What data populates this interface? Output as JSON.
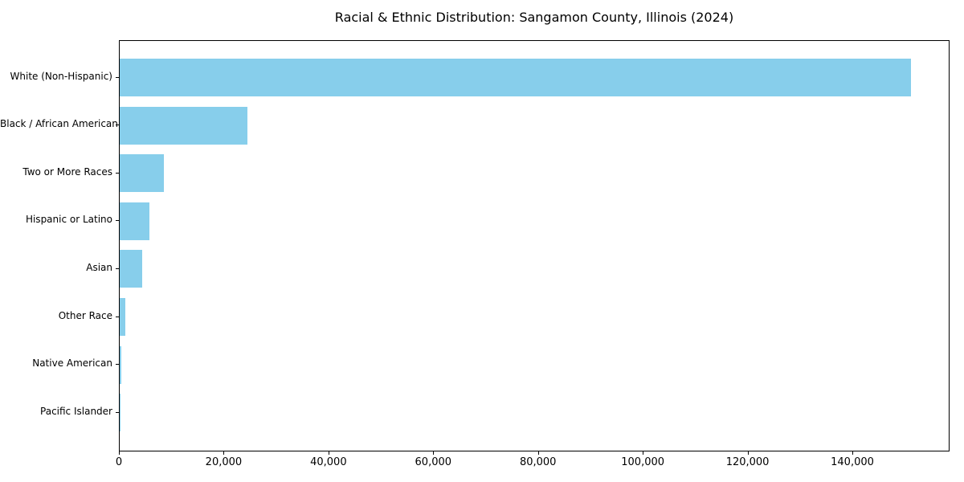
{
  "title": "Racial & Ethnic Distribution: Sangamon County, Illinois (2024)",
  "colors": {
    "bar": "#87CEEB",
    "axis": "#000000",
    "background": "#FFFFFF",
    "text": "#000000"
  },
  "chart_data": {
    "type": "bar",
    "orientation": "horizontal",
    "title": "Racial & Ethnic Distribution: Sangamon County, Illinois (2024)",
    "categories": [
      "White (Non-Hispanic)",
      "Black / African American",
      "Two or More Races",
      "Hispanic or Latino",
      "Asian",
      "Other Race",
      "Native American",
      "Pacific Islander"
    ],
    "values": [
      151000,
      24400,
      8400,
      5700,
      4300,
      1100,
      300,
      50
    ],
    "xlabel": "",
    "ylabel": "",
    "xlim": [
      0,
      158550
    ],
    "xticks": [
      0,
      20000,
      40000,
      60000,
      80000,
      100000,
      120000,
      140000
    ],
    "xtick_labels": [
      "0",
      "20,000",
      "40,000",
      "60,000",
      "80,000",
      "100,000",
      "120,000",
      "140,000"
    ],
    "bar_color": "#87CEEB",
    "grid": false,
    "legend": null
  }
}
